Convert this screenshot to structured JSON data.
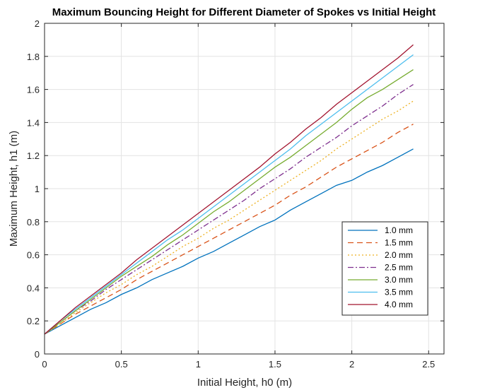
{
  "chart_data": {
    "type": "line",
    "title": "Maximum Bouncing Height for Different Diameter of Spokes vs Initial Height",
    "xlabel": "Initial Height, h0 (m)",
    "ylabel": "Maximum Height, h1 (m)",
    "xlim": [
      0,
      2.6
    ],
    "ylim": [
      0,
      2
    ],
    "xticks": [
      0,
      0.5,
      1,
      1.5,
      2,
      2.5
    ],
    "xtick_labels": [
      "0",
      "0.5",
      "1",
      "1.5",
      "2",
      "2.5"
    ],
    "yticks": [
      0,
      0.2,
      0.4,
      0.6,
      0.8,
      1,
      1.2,
      1.4,
      1.6,
      1.8,
      2
    ],
    "ytick_labels": [
      "0",
      "0.2",
      "0.4",
      "0.6",
      "0.8",
      "1",
      "1.2",
      "1.4",
      "1.6",
      "1.8",
      "2"
    ],
    "grid": true,
    "legend_position": "bottom-right",
    "x": [
      0,
      0.1,
      0.2,
      0.3,
      0.4,
      0.5,
      0.6,
      0.7,
      0.8,
      0.9,
      1.0,
      1.1,
      1.2,
      1.3,
      1.4,
      1.5,
      1.6,
      1.7,
      1.8,
      1.9,
      2.0,
      2.1,
      2.2,
      2.3,
      2.4
    ],
    "series": [
      {
        "name": "1.0 mm",
        "color": "#0072BD",
        "dash": "solid",
        "values": [
          0.12,
          0.17,
          0.22,
          0.27,
          0.31,
          0.36,
          0.4,
          0.45,
          0.49,
          0.53,
          0.58,
          0.62,
          0.67,
          0.72,
          0.77,
          0.81,
          0.87,
          0.92,
          0.97,
          1.02,
          1.05,
          1.1,
          1.14,
          1.19,
          1.24
        ]
      },
      {
        "name": "1.5 mm",
        "color": "#D95319",
        "dash": "dashed",
        "values": [
          0.12,
          0.18,
          0.24,
          0.29,
          0.34,
          0.39,
          0.45,
          0.5,
          0.55,
          0.6,
          0.65,
          0.7,
          0.75,
          0.8,
          0.85,
          0.9,
          0.96,
          1.01,
          1.07,
          1.13,
          1.18,
          1.23,
          1.28,
          1.34,
          1.39
        ]
      },
      {
        "name": "2.0 mm",
        "color": "#EDB120",
        "dash": "dotted",
        "values": [
          0.12,
          0.18,
          0.25,
          0.31,
          0.37,
          0.42,
          0.48,
          0.53,
          0.59,
          0.65,
          0.7,
          0.76,
          0.81,
          0.87,
          0.93,
          0.99,
          1.05,
          1.11,
          1.17,
          1.24,
          1.3,
          1.36,
          1.42,
          1.47,
          1.53
        ]
      },
      {
        "name": "2.5 mm",
        "color": "#7E2F8E",
        "dash": "dashdot",
        "values": [
          0.12,
          0.19,
          0.26,
          0.32,
          0.39,
          0.45,
          0.51,
          0.57,
          0.63,
          0.69,
          0.75,
          0.81,
          0.87,
          0.93,
          1.0,
          1.06,
          1.12,
          1.19,
          1.25,
          1.31,
          1.38,
          1.44,
          1.5,
          1.57,
          1.63
        ]
      },
      {
        "name": "3.0 mm",
        "color": "#77AC30",
        "dash": "solid",
        "values": [
          0.12,
          0.19,
          0.26,
          0.33,
          0.4,
          0.47,
          0.53,
          0.59,
          0.66,
          0.72,
          0.79,
          0.86,
          0.92,
          0.99,
          1.06,
          1.13,
          1.19,
          1.26,
          1.33,
          1.4,
          1.48,
          1.55,
          1.6,
          1.66,
          1.72
        ]
      },
      {
        "name": "3.5 mm",
        "color": "#4DBEEE",
        "dash": "solid",
        "values": [
          0.12,
          0.2,
          0.27,
          0.34,
          0.41,
          0.48,
          0.55,
          0.62,
          0.69,
          0.75,
          0.82,
          0.89,
          0.96,
          1.03,
          1.1,
          1.17,
          1.24,
          1.32,
          1.39,
          1.46,
          1.53,
          1.6,
          1.67,
          1.74,
          1.81
        ]
      },
      {
        "name": "4.0 mm",
        "color": "#A2142F",
        "dash": "solid",
        "values": [
          0.12,
          0.2,
          0.28,
          0.35,
          0.42,
          0.49,
          0.57,
          0.64,
          0.71,
          0.78,
          0.85,
          0.92,
          0.99,
          1.06,
          1.13,
          1.21,
          1.28,
          1.36,
          1.43,
          1.51,
          1.58,
          1.65,
          1.72,
          1.79,
          1.87
        ]
      }
    ]
  }
}
